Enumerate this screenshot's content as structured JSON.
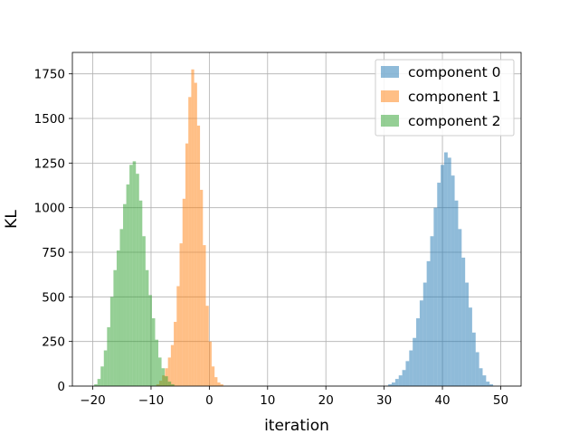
{
  "chart_data": {
    "type": "bar",
    "subtype": "histogram",
    "title": "",
    "xlabel": "iteration",
    "ylabel": "KL",
    "xlim": [
      -23.5,
      53.5
    ],
    "ylim": [
      0,
      1870
    ],
    "xticks": [
      -20,
      -10,
      0,
      10,
      20,
      30,
      40,
      50
    ],
    "xtick_labels": [
      "−20",
      "−10",
      "0",
      "10",
      "20",
      "30",
      "40",
      "50"
    ],
    "yticks": [
      0,
      250,
      500,
      750,
      1000,
      1250,
      1500,
      1750
    ],
    "ytick_labels": [
      "0",
      "250",
      "500",
      "750",
      "1000",
      "1250",
      "1500",
      "1750"
    ],
    "grid": true,
    "legend_position": "top-right",
    "bar_alpha": 0.5,
    "series": [
      {
        "name": "component 0",
        "color": "#1f77b4",
        "bin_width": 0.6,
        "bin_start": 30.7,
        "values": [
          10,
          20,
          40,
          60,
          90,
          140,
          200,
          270,
          380,
          480,
          580,
          700,
          840,
          1000,
          1140,
          1240,
          1310,
          1280,
          1180,
          1040,
          880,
          720,
          580,
          440,
          300,
          190,
          100,
          60,
          25,
          10
        ]
      },
      {
        "name": "component 1",
        "color": "#ff7f0e",
        "bin_width": 0.5,
        "bin_start": -9.1,
        "values": [
          10,
          30,
          60,
          100,
          160,
          230,
          360,
          560,
          800,
          1050,
          1360,
          1620,
          1775,
          1700,
          1460,
          1100,
          790,
          450,
          250,
          110,
          50,
          20,
          10
        ]
      },
      {
        "name": "component 2",
        "color": "#2ca02c",
        "bin_width": 0.55,
        "bin_start": -19.75,
        "values": [
          10,
          40,
          110,
          200,
          330,
          500,
          650,
          760,
          880,
          1020,
          1130,
          1240,
          1260,
          1190,
          1040,
          840,
          650,
          510,
          380,
          260,
          160,
          100,
          55,
          25,
          10
        ]
      }
    ]
  }
}
